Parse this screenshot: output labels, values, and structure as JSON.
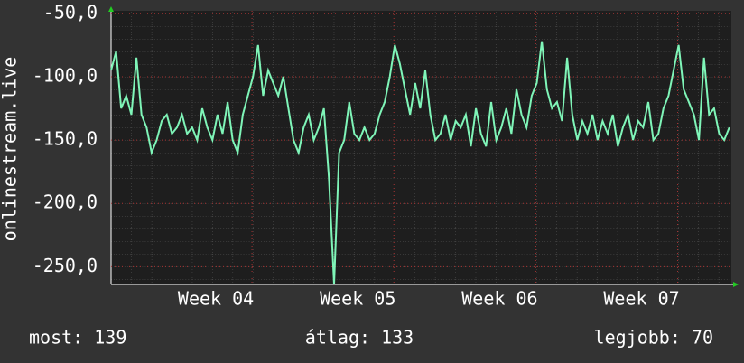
{
  "chart_data": {
    "type": "line",
    "ylabel": "onlinestream.live",
    "color": "#7ff5b8",
    "x": [
      0,
      0.25,
      0.5,
      0.75,
      1,
      1.25,
      1.5,
      1.75,
      2,
      2.25,
      2.5,
      2.75,
      3,
      3.25,
      3.5,
      3.75,
      4,
      4.25,
      4.5,
      4.75,
      5,
      5.25,
      5.5,
      5.75,
      6,
      6.25,
      6.5,
      6.75,
      7,
      7.25,
      7.5,
      7.75,
      8,
      8.25,
      8.5,
      8.75,
      9,
      9.25,
      9.5,
      9.75,
      10,
      10.25,
      10.5,
      10.75,
      11,
      11.25,
      11.5,
      11.75,
      12,
      12.25,
      12.5,
      12.75,
      13,
      13.25,
      13.5,
      13.75,
      14,
      14.25,
      14.5,
      14.75,
      15,
      15.25,
      15.5,
      15.75,
      16,
      16.25,
      16.5,
      16.75,
      17,
      17.25,
      17.5,
      17.75,
      18,
      18.25,
      18.5,
      18.75,
      19,
      19.25,
      19.5,
      19.75,
      20,
      20.25,
      20.5,
      20.75,
      21,
      21.25,
      21.5,
      21.75,
      22,
      22.25,
      22.5,
      22.75,
      23,
      23.25,
      23.5,
      23.75,
      24,
      24.25,
      24.5,
      24.75,
      25,
      25.25,
      25.5,
      25.75,
      26,
      26.25,
      26.5,
      26.75,
      27,
      27.25,
      27.5,
      27.75,
      28,
      28.25,
      28.5,
      28.75,
      29,
      29.25,
      29.5,
      29.75,
      30,
      30.25,
      30.5
    ],
    "values": [
      -95,
      -80,
      -125,
      -115,
      -130,
      -85,
      -130,
      -140,
      -160,
      -150,
      -135,
      -130,
      -145,
      -140,
      -130,
      -145,
      -140,
      -150,
      -125,
      -140,
      -150,
      -130,
      -145,
      -120,
      -150,
      -160,
      -130,
      -115,
      -100,
      -75,
      -115,
      -95,
      -105,
      -115,
      -100,
      -125,
      -150,
      -160,
      -140,
      -130,
      -150,
      -140,
      -125,
      -180,
      -264,
      -160,
      -150,
      -120,
      -145,
      -150,
      -140,
      -150,
      -145,
      -130,
      -120,
      -100,
      -75,
      -90,
      -110,
      -130,
      -105,
      -125,
      -95,
      -130,
      -150,
      -145,
      -130,
      -150,
      -135,
      -140,
      -130,
      -155,
      -125,
      -145,
      -155,
      -120,
      -150,
      -140,
      -125,
      -145,
      -110,
      -130,
      -140,
      -115,
      -105,
      -72,
      -110,
      -125,
      -120,
      -135,
      -85,
      -130,
      -150,
      -135,
      -145,
      -130,
      -150,
      -135,
      -145,
      -130,
      -155,
      -140,
      -130,
      -150,
      -135,
      -140,
      -120,
      -150,
      -145,
      -125,
      -115,
      -95,
      -75,
      -110,
      -120,
      -130,
      -150,
      -85,
      -130,
      -125,
      -145,
      -150,
      -140
    ],
    "xlim": [
      0,
      30.6
    ],
    "xticks": [
      {
        "value": 5.17,
        "label": "Week 04"
      },
      {
        "value": 12.17,
        "label": "Week 05"
      },
      {
        "value": 19.17,
        "label": "Week 06"
      },
      {
        "value": 26.17,
        "label": "Week 07"
      }
    ],
    "ylim": [
      -264,
      -48
    ],
    "yticks": [
      {
        "value": -50,
        "label": "-50,0"
      },
      {
        "value": -100,
        "label": "-100,0"
      },
      {
        "value": -150,
        "label": "-150,0"
      },
      {
        "value": -200,
        "label": "-200,0"
      },
      {
        "value": -250,
        "label": "-250,0"
      }
    ],
    "grid": true,
    "footer": [
      "most: 139",
      "átlag: 133",
      "legjobb: 70"
    ]
  }
}
